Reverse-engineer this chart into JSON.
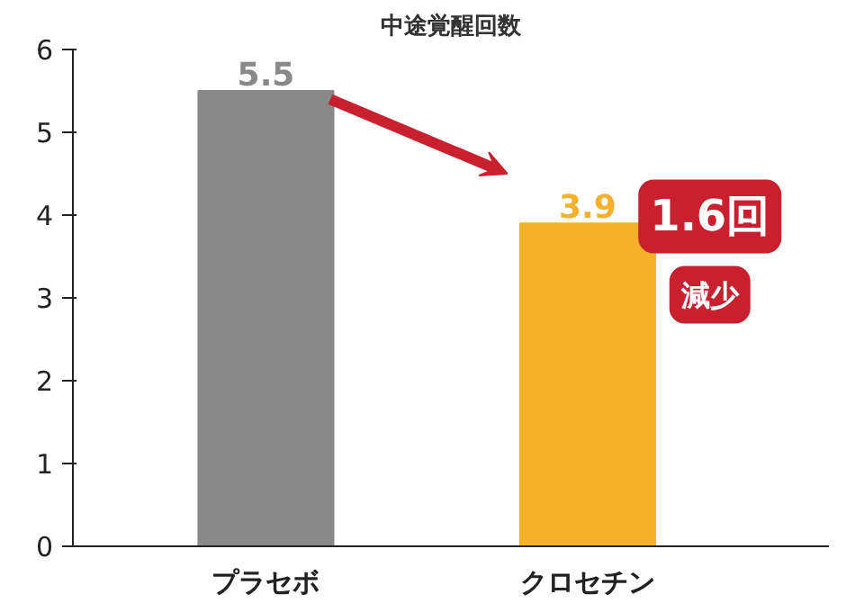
{
  "chart_data": {
    "type": "bar",
    "title": "中途覚醒回数",
    "categories": [
      "プラセボ",
      "クロセチン"
    ],
    "values": [
      5.5,
      3.9
    ],
    "colors": [
      "#898989",
      "#f6b12b"
    ],
    "ylim": [
      0,
      6
    ],
    "yticks": [
      0,
      1,
      2,
      3,
      4,
      5,
      6
    ],
    "grid": false,
    "data_labels": true,
    "annotations": [
      "1.6回",
      "減少"
    ]
  }
}
